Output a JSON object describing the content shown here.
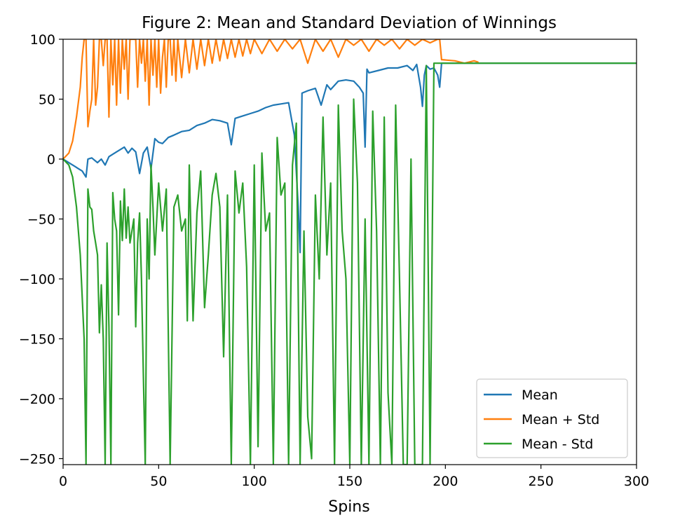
{
  "chart_data": {
    "type": "line",
    "title": "Figure 2: Mean and Standard Deviation of Winnings",
    "xlabel": "Spins",
    "ylabel": "",
    "xlim": [
      0,
      300
    ],
    "ylim": [
      -255,
      100
    ],
    "xticks": [
      0,
      50,
      100,
      150,
      200,
      250,
      300
    ],
    "yticks": [
      100,
      50,
      0,
      -50,
      -100,
      -150,
      -200,
      -250
    ],
    "ytick_labels": [
      "100",
      "50",
      "0",
      "−50",
      "−100",
      "−150",
      "−200",
      "−250"
    ],
    "grid": false,
    "legend": "bottom-right",
    "series": [
      {
        "name": "Mean",
        "color": "#1f77b4",
        "x": [
          0,
          2,
          4,
          6,
          8,
          10,
          12,
          13,
          15,
          18,
          20,
          22,
          24,
          26,
          28,
          30,
          32,
          34,
          36,
          38,
          40,
          42,
          44,
          46,
          48,
          50,
          52,
          55,
          58,
          62,
          66,
          70,
          74,
          78,
          82,
          86,
          88,
          90,
          94,
          98,
          102,
          106,
          110,
          114,
          118,
          121,
          123,
          124,
          125,
          128,
          132,
          135,
          138,
          140,
          144,
          148,
          152,
          155,
          157,
          158,
          159,
          160,
          165,
          170,
          175,
          180,
          183,
          185,
          187,
          188,
          189,
          190,
          192,
          194,
          196,
          197,
          198,
          205,
          300
        ],
        "y": [
          0,
          -2,
          -4,
          -6,
          -8,
          -10,
          -15,
          0,
          1,
          -3,
          0,
          -5,
          2,
          4,
          6,
          8,
          10,
          5,
          9,
          6,
          -12,
          5,
          10,
          -8,
          17,
          14,
          13,
          18,
          20,
          23,
          24,
          28,
          30,
          33,
          32,
          30,
          12,
          34,
          36,
          38,
          40,
          43,
          45,
          46,
          47,
          20,
          -40,
          -78,
          55,
          57,
          59,
          45,
          62,
          58,
          65,
          66,
          65,
          60,
          55,
          10,
          75,
          72,
          74,
          76,
          76,
          78,
          74,
          79,
          60,
          44,
          70,
          78,
          75,
          76,
          70,
          60,
          80,
          80,
          80
        ]
      },
      {
        "name": "Mean + Std",
        "color": "#ff7f0e",
        "x": [
          0,
          3,
          5,
          7,
          9,
          10,
          11,
          12,
          13,
          14,
          15,
          16,
          17,
          18,
          19,
          20,
          21,
          22,
          23,
          24,
          25,
          26,
          27,
          28,
          29,
          30,
          31,
          32,
          33,
          34,
          35,
          36,
          37,
          38,
          39,
          40,
          41,
          42,
          43,
          44,
          45,
          46,
          47,
          48,
          49,
          50,
          51,
          52,
          53,
          54,
          55,
          56,
          57,
          58,
          59,
          60,
          62,
          64,
          66,
          68,
          70,
          72,
          74,
          76,
          78,
          80,
          82,
          84,
          86,
          88,
          90,
          92,
          94,
          96,
          98,
          100,
          104,
          108,
          112,
          116,
          120,
          124,
          128,
          132,
          136,
          140,
          144,
          148,
          152,
          156,
          160,
          164,
          168,
          172,
          176,
          180,
          184,
          188,
          192,
          196,
          197,
          198,
          205,
          210,
          215,
          217
        ],
        "y": [
          0,
          5,
          15,
          35,
          60,
          85,
          100,
          100,
          27,
          40,
          50,
          100,
          45,
          60,
          100,
          100,
          78,
          100,
          100,
          35,
          100,
          62,
          100,
          45,
          100,
          55,
          100,
          75,
          100,
          50,
          100,
          100,
          100,
          100,
          60,
          100,
          80,
          100,
          65,
          100,
          45,
          100,
          70,
          100,
          60,
          100,
          55,
          85,
          100,
          60,
          100,
          100,
          70,
          100,
          65,
          100,
          68,
          100,
          72,
          100,
          75,
          100,
          78,
          100,
          80,
          100,
          82,
          100,
          84,
          100,
          85,
          100,
          86,
          100,
          88,
          100,
          88,
          100,
          90,
          100,
          92,
          100,
          80,
          100,
          90,
          100,
          85,
          100,
          95,
          100,
          90,
          100,
          95,
          100,
          92,
          100,
          95,
          100,
          97,
          100,
          100,
          83,
          82,
          80,
          82,
          81
        ]
      },
      {
        "name": "Mean - Std",
        "color": "#2ca02c",
        "x": [
          0,
          3,
          5,
          7,
          9,
          11,
          12,
          13,
          14,
          15,
          16,
          17,
          18,
          19,
          20,
          21,
          22,
          23,
          24,
          25,
          26,
          27,
          28,
          29,
          30,
          31,
          32,
          33,
          34,
          35,
          36,
          37,
          38,
          39,
          40,
          41,
          42,
          43,
          44,
          45,
          46,
          47,
          48,
          50,
          52,
          54,
          56,
          58,
          60,
          62,
          64,
          65,
          66,
          68,
          70,
          72,
          74,
          76,
          78,
          80,
          82,
          84,
          86,
          88,
          90,
          92,
          94,
          96,
          98,
          100,
          102,
          104,
          106,
          108,
          110,
          112,
          114,
          116,
          118,
          120,
          122,
          124,
          126,
          128,
          130,
          132,
          134,
          136,
          138,
          140,
          142,
          144,
          146,
          148,
          150,
          152,
          154,
          156,
          158,
          160,
          162,
          164,
          166,
          168,
          170,
          172,
          174,
          176,
          178,
          180,
          182,
          184,
          186,
          188,
          190,
          192,
          194,
          196,
          197,
          198,
          205,
          210,
          215,
          300
        ],
        "y": [
          0,
          -5,
          -15,
          -40,
          -80,
          -150,
          -255,
          -25,
          -40,
          -42,
          -60,
          -70,
          -80,
          -145,
          -105,
          -150,
          -255,
          -70,
          -140,
          -255,
          -28,
          -50,
          -60,
          -130,
          -35,
          -68,
          -25,
          -66,
          -40,
          -70,
          -60,
          -50,
          -140,
          -70,
          -45,
          -100,
          -180,
          -255,
          -50,
          -100,
          -5,
          -40,
          -80,
          -20,
          -60,
          -25,
          -255,
          -40,
          -30,
          -60,
          -50,
          -135,
          -5,
          -135,
          -45,
          -10,
          -124,
          -80,
          -30,
          -12,
          -40,
          -165,
          -30,
          -255,
          -10,
          -45,
          -20,
          -90,
          -255,
          -5,
          -240,
          5,
          -60,
          -45,
          -255,
          18,
          -30,
          -20,
          -255,
          -5,
          30,
          -255,
          -60,
          -215,
          -250,
          -30,
          -100,
          35,
          -80,
          -20,
          -255,
          45,
          -60,
          -100,
          -255,
          50,
          -20,
          -255,
          -50,
          -255,
          40,
          -60,
          -255,
          35,
          -195,
          -255,
          45,
          -100,
          -255,
          -255,
          0,
          -255,
          -255,
          -255,
          78,
          -255,
          80,
          80,
          80,
          80,
          80,
          80,
          80,
          80
        ]
      }
    ]
  }
}
